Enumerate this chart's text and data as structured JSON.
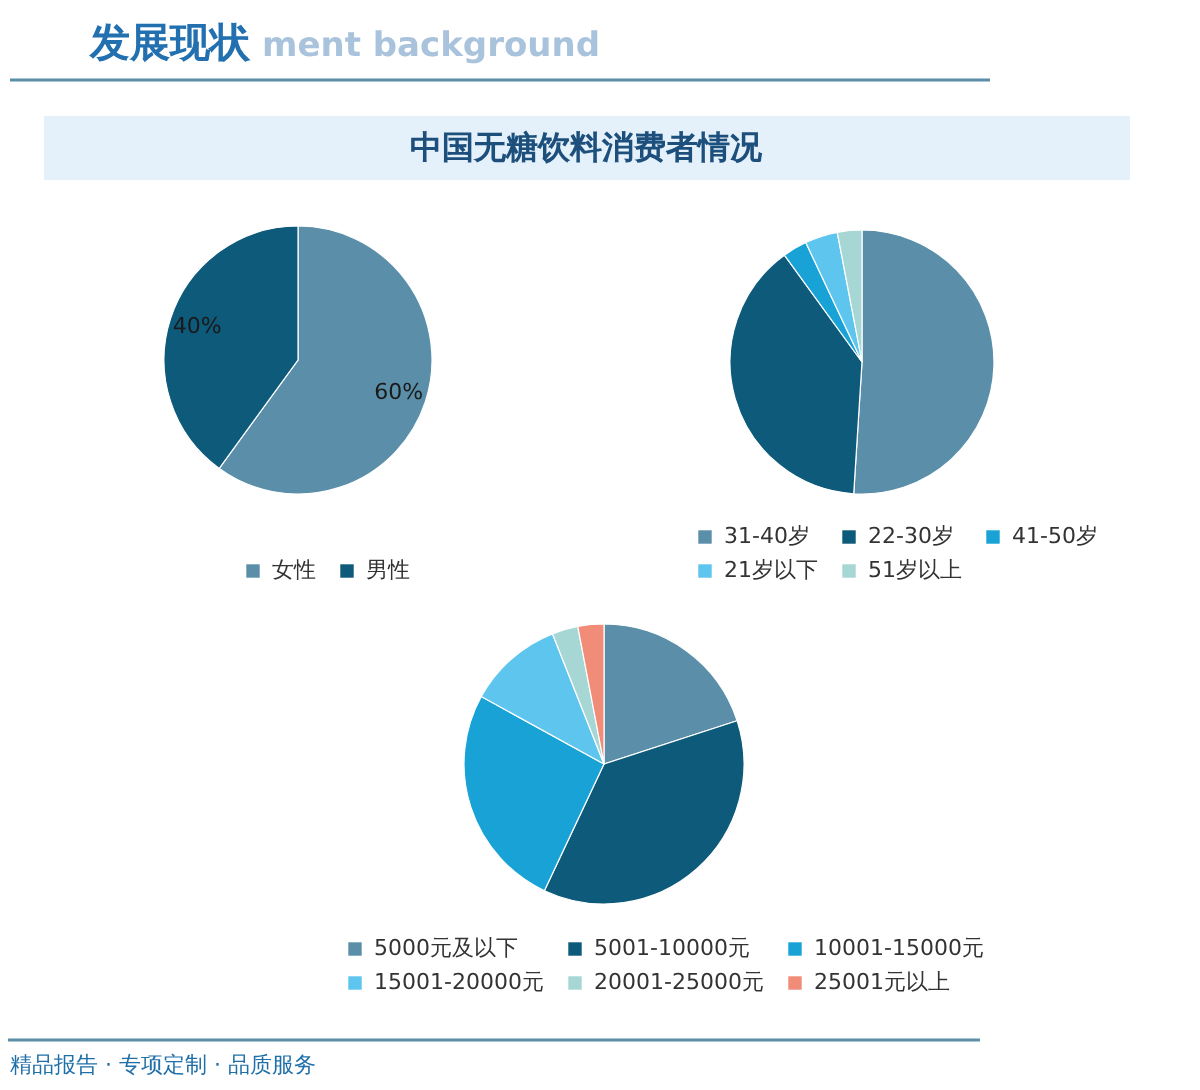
{
  "chart_data": [
    {
      "type": "pie",
      "title": "中国无糖饮料消费者情况",
      "annotations": [
        "发展现状",
        "ment background"
      ],
      "categories": [
        "女性",
        "男性"
      ],
      "values": [
        60,
        40
      ],
      "colors": [
        "#5b8fa9",
        "#0e5a7a"
      ],
      "value_labels": [
        "60%",
        "40%"
      ],
      "legend": "bottom"
    },
    {
      "type": "pie",
      "categories": [
        "31-40岁",
        "22-30岁",
        "41-50岁",
        "21岁以下",
        "51岁以上"
      ],
      "values": [
        51,
        39,
        3,
        4,
        3
      ],
      "colors": [
        "#5b8fa9",
        "#0e5a7a",
        "#19a2d6",
        "#5ec6ee",
        "#a6d7d5"
      ],
      "legend": "bottom"
    },
    {
      "type": "pie",
      "annotations": [
        "精品报告 · 专项定制 · 品质服务"
      ],
      "categories": [
        "5000元及以下",
        "5001-10000元",
        "10001-15000元",
        "15001-20000元",
        "20001-25000元",
        "25001元以上"
      ],
      "values": [
        20,
        37,
        26,
        11,
        3,
        3
      ],
      "colors": [
        "#5b8fa9",
        "#0e5a7a",
        "#19a2d6",
        "#5ec6ee",
        "#a6d7d5",
        "#f08c78"
      ],
      "legend": "bottom"
    }
  ]
}
